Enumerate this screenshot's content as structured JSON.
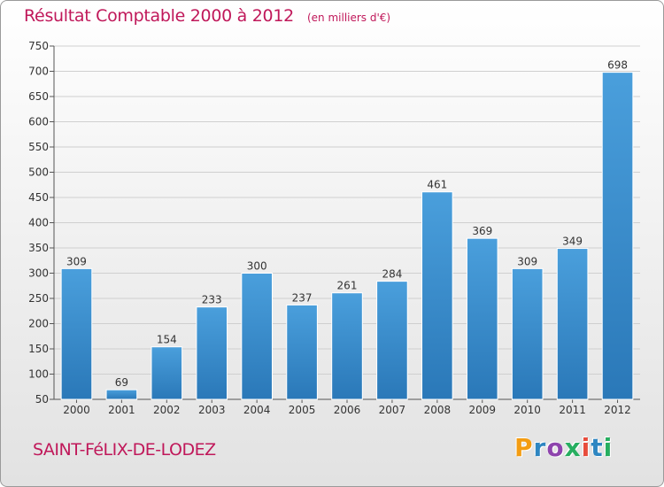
{
  "header": {
    "title": "Résultat Comptable 2000 à 2012",
    "subtitle": "(en milliers d'€)"
  },
  "footer": {
    "commune": "SAINT-FéLIX-DE-LODEZ",
    "logo_letters": [
      "P",
      "r",
      "o",
      "x",
      "i",
      "t",
      "i"
    ],
    "logo_colors": [
      "#f39c12",
      "#2e86c1",
      "#8e44ad",
      "#27ae60",
      "#e74c3c",
      "#2e86c1",
      "#27ae60"
    ]
  },
  "chart_data": {
    "type": "bar",
    "title": "Résultat Comptable 2000 à 2012",
    "subtitle": "(en milliers d'€)",
    "categories": [
      "2000",
      "2001",
      "2002",
      "2003",
      "2004",
      "2005",
      "2006",
      "2007",
      "2008",
      "2009",
      "2010",
      "2011",
      "2012"
    ],
    "values": [
      309,
      69,
      154,
      233,
      300,
      237,
      261,
      284,
      461,
      369,
      309,
      349,
      698
    ],
    "ylim": [
      50,
      750
    ],
    "yticks": [
      50,
      100,
      150,
      200,
      250,
      300,
      350,
      400,
      450,
      500,
      550,
      600,
      650,
      700,
      750
    ],
    "grid": true,
    "bar_color": "#4a9fdc",
    "bar_color_dark": "#2a78b8"
  }
}
